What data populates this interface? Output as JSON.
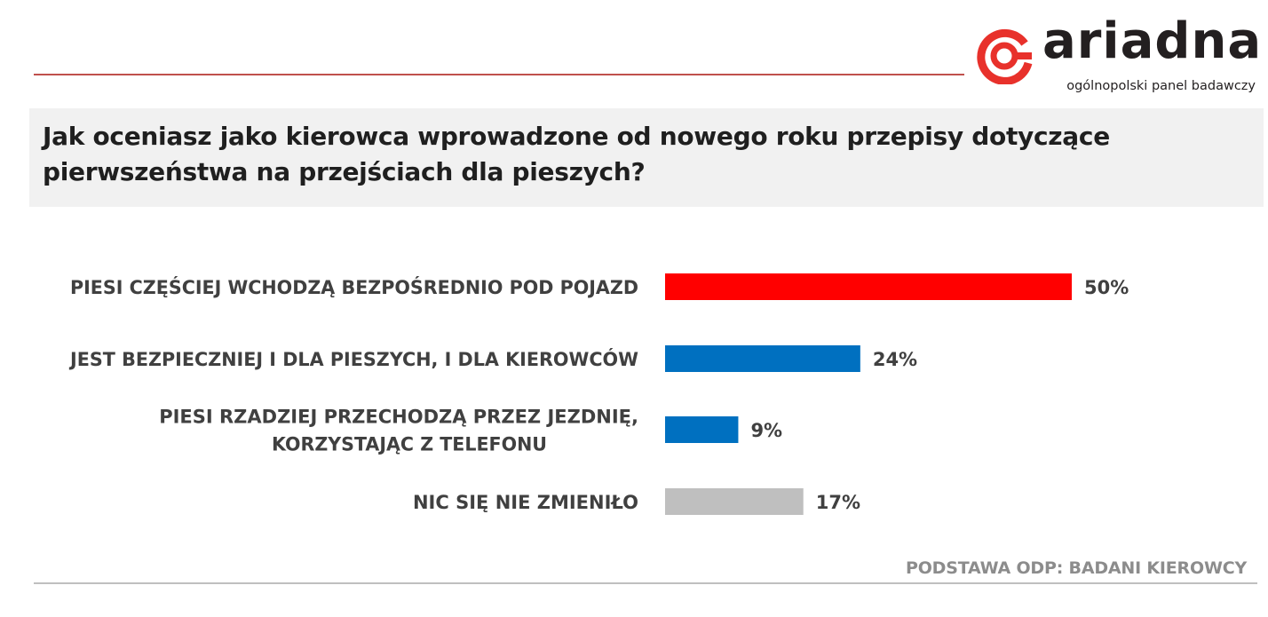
{
  "brand": {
    "name": "ariadna",
    "tagline": "ogólnopolski panel badawczy",
    "colors": {
      "primary": "#e8312b",
      "text": "#231f20"
    }
  },
  "question": "Jak oceniasz jako kierowca wprowadzone od nowego roku przepisy dotyczące pierwszeństwa na przejściach dla pieszych?",
  "footnote": "PODSTAWA ODP: BADANI KIEROWCY",
  "chart_data": {
    "type": "bar",
    "orientation": "horizontal",
    "categories": [
      [
        "PIESI CZĘŚCIEJ WCHODZĄ BEZPOŚREDNIO POD POJAZD"
      ],
      [
        "JEST BEZPIECZNIEJ I DLA PIESZYCH, I DLA KIEROWCÓW"
      ],
      [
        "PIESI RZADZIEJ PRZECHODZĄ PRZEZ JEZDNIĘ,",
        "KORZYSTAJĄC Z TELEFONU"
      ],
      [
        "NIC SIĘ NIE ZMIENIŁO"
      ]
    ],
    "values": [
      50,
      24,
      9,
      17
    ],
    "value_labels": [
      "50%",
      "24%",
      "9%",
      "17%"
    ],
    "colors": [
      "#ff0000",
      "#0070c0",
      "#0070c0",
      "#bfbfbf"
    ],
    "xlim": [
      0,
      50
    ],
    "grid": false,
    "legend": "none"
  }
}
